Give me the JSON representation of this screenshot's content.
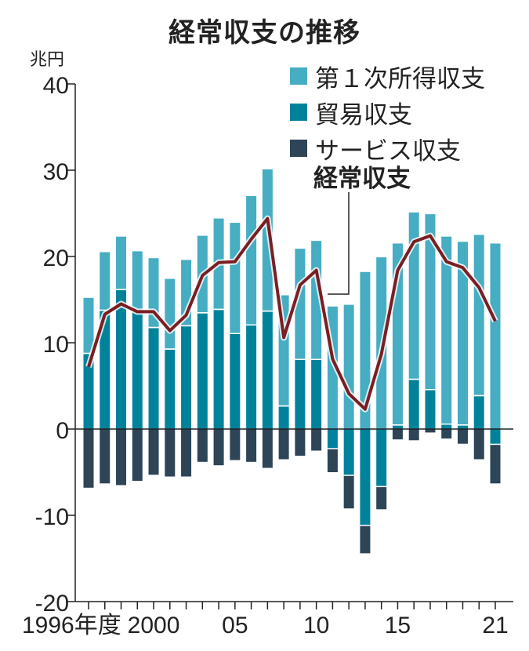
{
  "chart_data": {
    "type": "bar",
    "stacked": true,
    "title": "経常収支の推移",
    "ylabel": "兆円",
    "xlabel": "",
    "ylim": [
      -20,
      40
    ],
    "yticks": [
      40,
      30,
      20,
      10,
      0,
      -10,
      -20
    ],
    "ytick_labels": [
      "40",
      "30",
      "20",
      "10",
      "0",
      "-10",
      "-20"
    ],
    "x": [
      1996,
      1997,
      1998,
      1999,
      2000,
      2001,
      2002,
      2003,
      2004,
      2005,
      2006,
      2007,
      2008,
      2009,
      2010,
      2011,
      2012,
      2013,
      2014,
      2015,
      2016,
      2017,
      2018,
      2019,
      2020,
      2021
    ],
    "xtick_labels": [
      {
        "year": 1996,
        "label": "1996年度"
      },
      {
        "year": 2000,
        "label": "2000"
      },
      {
        "year": 2005,
        "label": "05"
      },
      {
        "year": 2010,
        "label": "10"
      },
      {
        "year": 2015,
        "label": "15"
      },
      {
        "year": 2021,
        "label": "21"
      }
    ],
    "series": [
      {
        "name": "第１次所得収支",
        "type": "bar",
        "color": "#46adc3",
        "values": [
          6.5,
          6.8,
          6.2,
          7.0,
          8.1,
          8.2,
          7.7,
          9.0,
          10.6,
          12.9,
          15.0,
          16.5,
          12.9,
          12.9,
          13.8,
          14.2,
          14.4,
          18.2,
          19.9,
          21.1,
          19.4,
          20.4,
          21.8,
          21.3,
          18.7,
          21.5
        ]
      },
      {
        "name": "貿易収支",
        "type": "bar",
        "color": "#00829b",
        "values": [
          8.7,
          13.7,
          16.1,
          13.6,
          11.7,
          9.2,
          11.9,
          13.4,
          13.8,
          11.0,
          12.0,
          13.6,
          2.6,
          8.0,
          8.0,
          -2.2,
          -5.3,
          -11.1,
          -6.6,
          0.4,
          5.7,
          4.5,
          0.5,
          0.4,
          3.8,
          -1.7
        ]
      },
      {
        "name": "サービス収支",
        "type": "bar",
        "color": "#2e4457",
        "values": [
          -6.8,
          -6.3,
          -6.5,
          -6.0,
          -5.3,
          -5.5,
          -5.5,
          -3.8,
          -4.2,
          -3.6,
          -3.8,
          -4.5,
          -3.5,
          -3.1,
          -2.5,
          -2.8,
          -3.9,
          -3.3,
          -2.7,
          -1.2,
          -1.3,
          -0.4,
          -1.1,
          -1.7,
          -3.5,
          -4.6
        ]
      },
      {
        "name": "経常収支",
        "type": "line",
        "color": "#7b1e22",
        "values": [
          7.2,
          13.3,
          14.5,
          13.6,
          13.6,
          11.4,
          13.2,
          17.8,
          19.3,
          19.4,
          22.0,
          24.4,
          10.6,
          16.7,
          18.4,
          8.1,
          4.1,
          2.3,
          8.7,
          18.4,
          21.7,
          22.4,
          19.4,
          18.7,
          16.4,
          12.5
        ]
      }
    ],
    "legend": {
      "placement": "top-right",
      "entries": [
        "第１次所得収支",
        "貿易収支",
        "サービス収支"
      ]
    },
    "annotation": "経常収支",
    "grid": false
  }
}
